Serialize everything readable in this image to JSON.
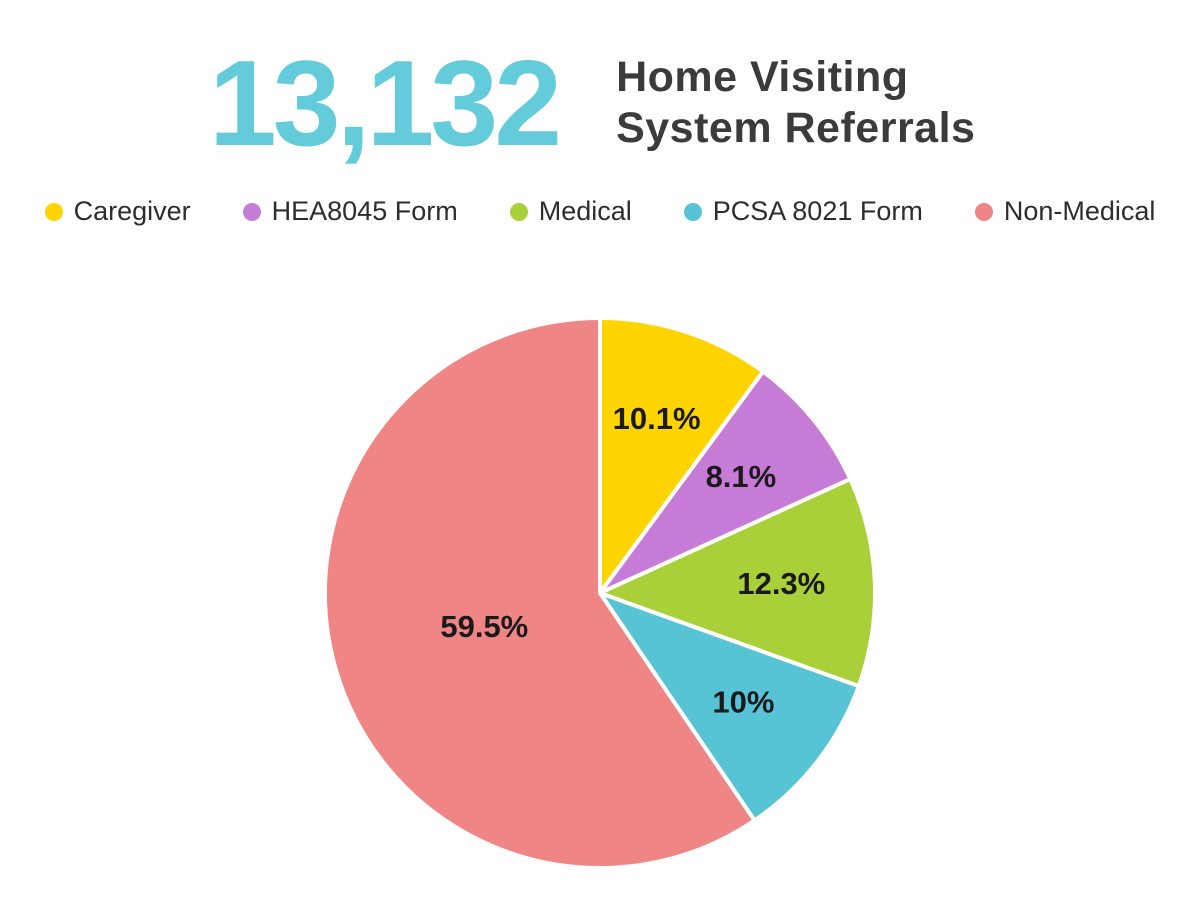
{
  "header": {
    "big_number": "13,132",
    "title": "Home Visiting System Referrals"
  },
  "chart_data": {
    "type": "pie",
    "title": "Home Visiting System Referrals",
    "total_label": "13,132",
    "legend_position": "top",
    "start_angle_deg": 0,
    "direction": "clockwise",
    "slices": [
      {
        "label": "Caregiver",
        "value": 10.1,
        "display": "10.1%",
        "color": "#FFD400"
      },
      {
        "label": "HEA8045 Form",
        "value": 8.1,
        "display": "8.1%",
        "color": "#C67BD7"
      },
      {
        "label": "Medical",
        "value": 12.3,
        "display": "12.3%",
        "color": "#A9CF39"
      },
      {
        "label": "PCSA 8021 Form",
        "value": 10,
        "display": "10%",
        "color": "#57C4D6"
      },
      {
        "label": "Non-Medical",
        "value": 59.5,
        "display": "59.5%",
        "color": "#F08585"
      }
    ]
  },
  "colors": {
    "big_number": "#63CBDA",
    "title_text": "#3B3B3B",
    "legend_text": "#2D2D2D",
    "slice_label_text": "#1A1A1A",
    "background": "#FFFFFF"
  }
}
